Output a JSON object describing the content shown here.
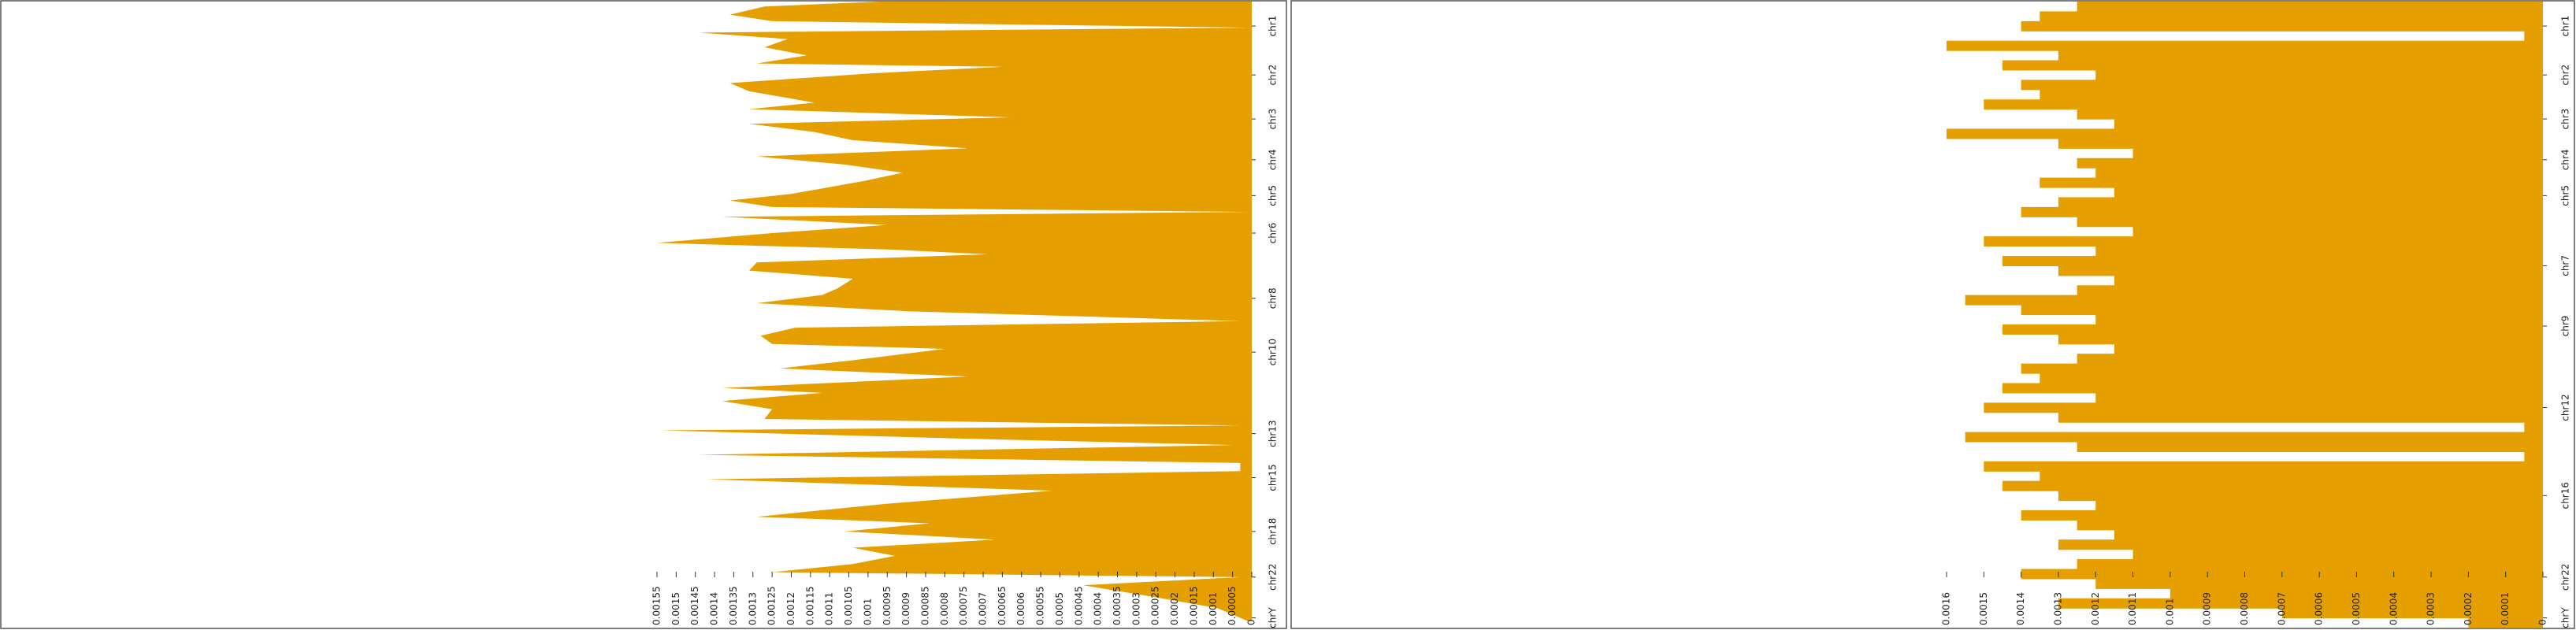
{
  "chart_data": [
    {
      "type": "area",
      "color": "#e69f00",
      "x": [
        0,
        3,
        8,
        12,
        16,
        19,
        23,
        28,
        33,
        38,
        40,
        44,
        50,
        55,
        62,
        66,
        71,
        75,
        80,
        85,
        90,
        95,
        100,
        105,
        110,
        118,
        122,
        126,
        129,
        132,
        137,
        142,
        148,
        152,
        155,
        160,
        165,
        170,
        176,
        180,
        185,
        190,
        196,
        200,
        205,
        210,
        213,
        220,
        225,
        230,
        237,
        240,
        245,
        250,
        256,
        260,
        263,
        268,
        272,
        278,
        283,
        288,
        293,
        300,
        308,
        316,
        320,
        325,
        330,
        335,
        340,
        345,
        350,
        353,
        358,
        365,
        372,
        380
      ],
      "values": [
        0.00097,
        0.00127,
        0.00136,
        0.00125,
        1e-05,
        0.00144,
        0.00121,
        0.00127,
        0.00116,
        0.00129,
        0.00065,
        0.00099,
        0.00136,
        0.00131,
        0.00114,
        0.00131,
        0.00063,
        0.00131,
        0.00114,
        0.00104,
        0.00074,
        0.00129,
        0.00106,
        0.00091,
        0.00101,
        0.0012,
        0.00136,
        0.00125,
        1e-05,
        0.00138,
        0.00095,
        0.00125,
        0.00155,
        0.00095,
        0.00069,
        0.00129,
        0.00131,
        0.00104,
        0.00108,
        0.00112,
        0.00129,
        0.00089,
        3e-05,
        0.00119,
        0.00128,
        0.00125,
        0.0008,
        0.00104,
        0.00123,
        0.00074,
        0.00138,
        0.00112,
        0.00138,
        0.00125,
        0.00127,
        3e-05,
        0.00154,
        0.00076,
        5e-05,
        0.00144,
        3e-05,
        3e-05,
        0.00142,
        0.00052,
        0.00095,
        0.00129,
        0.00084,
        0.00106,
        0.00067,
        0.00104,
        0.00093,
        0.00104,
        0.00125,
        3e-05,
        0.00044,
        0.00026,
        9e-05,
        1e-05
      ],
      "xlim": [
        0,
        384
      ],
      "xticks": [
        {
          "value": 15,
          "label": "chr1"
        },
        {
          "value": 45,
          "label": "chr2"
        },
        {
          "value": 72,
          "label": "chr3"
        },
        {
          "value": 97,
          "label": "chr4"
        },
        {
          "value": 119,
          "label": "chr5"
        },
        {
          "value": 142,
          "label": "chr6"
        },
        {
          "value": 182,
          "label": "chr8"
        },
        {
          "value": 215,
          "label": "chr10"
        },
        {
          "value": 265,
          "label": "chr13"
        },
        {
          "value": 292,
          "label": "chr15"
        },
        {
          "value": 325,
          "label": "chr18"
        },
        {
          "value": 353,
          "label": "chr22"
        },
        {
          "value": 378,
          "label": "chrY"
        }
      ],
      "ylim": [
        0,
        0.00155
      ],
      "yticks": [
        0,
        5e-05,
        0.0001,
        0.00015,
        0.0002,
        0.00025,
        0.0003,
        0.00035,
        0.0004,
        0.00045,
        0.0005,
        0.00055,
        0.0006,
        0.00065,
        0.0007,
        0.00075,
        0.0008,
        0.00085,
        0.0009,
        0.00095,
        0.001,
        0.00105,
        0.0011,
        0.00115,
        0.0012,
        0.00125,
        0.0013,
        0.00135,
        0.0014,
        0.00145,
        0.0015,
        0.00155
      ]
    },
    {
      "type": "bar",
      "color": "#e69f00",
      "x": [
        0,
        6,
        12,
        18,
        24,
        30,
        36,
        42,
        48,
        54,
        60,
        66,
        72,
        78,
        84,
        90,
        96,
        102,
        108,
        114,
        120,
        126,
        132,
        138,
        144,
        150,
        156,
        162,
        168,
        174,
        180,
        186,
        192,
        198,
        204,
        210,
        216,
        222,
        228,
        234,
        240,
        246,
        252,
        258,
        264,
        270,
        276,
        282,
        288,
        294,
        300,
        306,
        312,
        318,
        324,
        330,
        336,
        342,
        348,
        354,
        360,
        366,
        372,
        378
      ],
      "values": [
        0.00125,
        0.00135,
        0.0014,
        5e-05,
        0.0016,
        0.0013,
        0.00145,
        0.0012,
        0.0014,
        0.00135,
        0.0015,
        0.00125,
        0.00115,
        0.0016,
        0.0013,
        0.0011,
        0.00125,
        0.0012,
        0.00135,
        0.00115,
        0.0013,
        0.0014,
        0.00125,
        0.0011,
        0.0015,
        0.0012,
        0.00145,
        0.0013,
        0.00115,
        0.00125,
        0.00155,
        0.0014,
        0.0012,
        0.00145,
        0.0013,
        0.00115,
        0.00125,
        0.0014,
        0.00135,
        0.00145,
        0.0012,
        0.0015,
        0.0013,
        5e-05,
        0.00155,
        0.00125,
        5e-05,
        0.0015,
        0.00135,
        0.00145,
        0.0013,
        0.0012,
        0.0014,
        0.00125,
        0.00115,
        0.0013,
        0.0011,
        0.00125,
        0.0014,
        0.0012,
        0.001,
        0.0013,
        0.0007,
        0.0002
      ],
      "xlim": [
        0,
        384
      ],
      "xticks": [
        {
          "value": 15,
          "label": "chr1"
        },
        {
          "value": 45,
          "label": "chr2"
        },
        {
          "value": 72,
          "label": "chr3"
        },
        {
          "value": 97,
          "label": "chr4"
        },
        {
          "value": 119,
          "label": "chr5"
        },
        {
          "value": 162,
          "label": "chr7"
        },
        {
          "value": 199,
          "label": "chr9"
        },
        {
          "value": 249,
          "label": "chr12"
        },
        {
          "value": 303,
          "label": "chr16"
        },
        {
          "value": 353,
          "label": "chr22"
        },
        {
          "value": 378,
          "label": "chrY"
        }
      ],
      "ylim": [
        0,
        0.0016
      ],
      "yticks": [
        0,
        0.0001,
        0.0002,
        0.0003,
        0.0004,
        0.0005,
        0.0006,
        0.0007,
        0.0008,
        0.0009,
        0.001,
        0.0011,
        0.0012,
        0.0013,
        0.0014,
        0.0015,
        0.0016
      ]
    }
  ]
}
